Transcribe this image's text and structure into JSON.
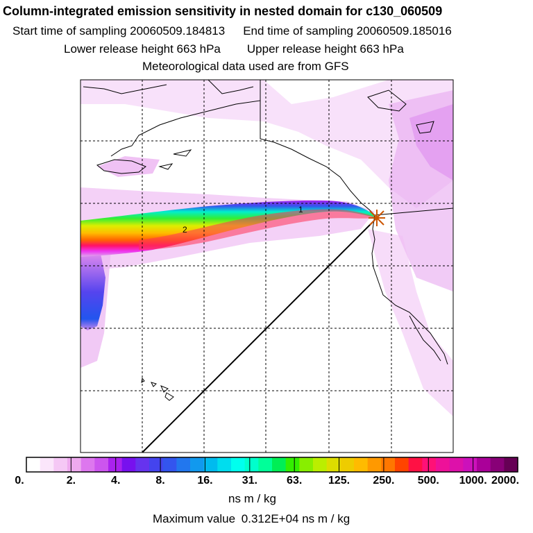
{
  "header": {
    "title": "Column-integrated emission sensitivity in nested domain for c130_060509",
    "start_label": "Start time of sampling 20060509.184813",
    "end_label": "End time of sampling 20060509.185016",
    "lower_label": "Lower release height  663 hPa",
    "upper_label": "Upper release height  663 hPa",
    "met_label": "Meteorological data used are from GFS"
  },
  "map": {
    "release_marker": "release-point-star",
    "trajectory_labels": [
      "1",
      "2"
    ]
  },
  "colorbar": {
    "tick_labels": [
      "0.",
      "2.",
      "4.",
      "8.",
      "16.",
      "31.",
      "63.",
      "125.",
      "250.",
      "500.",
      "1000.",
      "2000."
    ],
    "units": "ns m / kg",
    "max_label": "Maximum value",
    "max_value": "0.312E+04 ns m / kg",
    "colors": [
      "#ffffff",
      "#fbe6fb",
      "#f5c8f5",
      "#eeaaee",
      "#dd77ee",
      "#cc55ee",
      "#aa22ee",
      "#7711ee",
      "#6633ee",
      "#4444ee",
      "#3355ee",
      "#2277ee",
      "#1199ee",
      "#00bbee",
      "#00ddee",
      "#00ffee",
      "#00ffcc",
      "#00ff99",
      "#00ee55",
      "#33ee00",
      "#88ee00",
      "#bbee00",
      "#dddd00",
      "#eecc00",
      "#ffbb00",
      "#ff9900",
      "#ff7700",
      "#ff4400",
      "#ff1144",
      "#ff1177",
      "#ee1199",
      "#dd11aa",
      "#cc11bb",
      "#aa0099",
      "#880077",
      "#660055"
    ]
  }
}
